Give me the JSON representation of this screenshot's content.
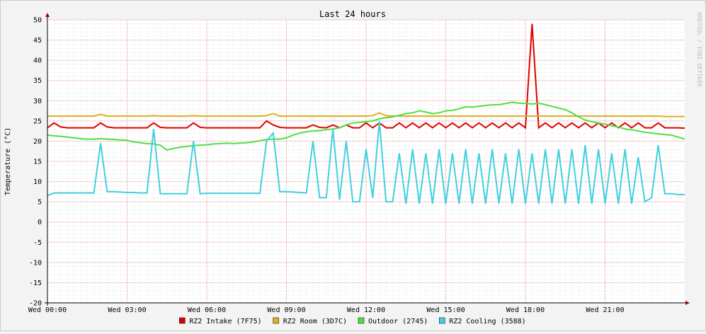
{
  "chart_data": {
    "type": "line",
    "title": "Last 24 hours",
    "y_label": "Temperature (°C)",
    "watermark": "RRDTOOL / TOBI OETIKER",
    "x": [
      0,
      0.25,
      0.5,
      0.75,
      1,
      1.25,
      1.5,
      1.75,
      2,
      2.25,
      2.5,
      2.75,
      3,
      3.25,
      3.5,
      3.75,
      4,
      4.25,
      4.5,
      4.75,
      5,
      5.25,
      5.5,
      5.75,
      6,
      6.25,
      6.5,
      6.75,
      7,
      7.25,
      7.5,
      7.75,
      8,
      8.25,
      8.5,
      8.75,
      9,
      9.25,
      9.5,
      9.75,
      10,
      10.25,
      10.5,
      10.75,
      11,
      11.25,
      11.5,
      11.75,
      12,
      12.25,
      12.5,
      12.75,
      13,
      13.25,
      13.5,
      13.75,
      14,
      14.25,
      14.5,
      14.75,
      15,
      15.25,
      15.5,
      15.75,
      16,
      16.25,
      16.5,
      16.75,
      17,
      17.25,
      17.5,
      17.75,
      18,
      18.25,
      18.5,
      18.75,
      19,
      19.25,
      19.5,
      19.75,
      20,
      20.25,
      20.5,
      20.75,
      21,
      21.25,
      21.5,
      21.75,
      22,
      22.25,
      22.5,
      22.75,
      23,
      23.25,
      23.5,
      23.75,
      24
    ],
    "xlim": [
      0,
      24
    ],
    "xticks": [
      {
        "value": 0,
        "label": "Wed 00:00"
      },
      {
        "value": 3,
        "label": "Wed 03:00"
      },
      {
        "value": 6,
        "label": "Wed 06:00"
      },
      {
        "value": 9,
        "label": "Wed 09:00"
      },
      {
        "value": 12,
        "label": "Wed 12:00"
      },
      {
        "value": 15,
        "label": "Wed 15:00"
      },
      {
        "value": 18,
        "label": "Wed 18:00"
      },
      {
        "value": 21,
        "label": "Wed 21:00"
      }
    ],
    "ylim": [
      -20,
      50
    ],
    "yticks": [
      -20,
      -15,
      -10,
      -5,
      0,
      5,
      10,
      15,
      20,
      25,
      30,
      35,
      40,
      45,
      50
    ],
    "grid": true,
    "series": [
      {
        "name": "RZ2 Intake (7F75)",
        "color": "#e00000",
        "values": [
          23.3,
          24.5,
          23.5,
          23.3,
          23.3,
          23.3,
          23.3,
          23.3,
          24.5,
          23.5,
          23.3,
          23.3,
          23.3,
          23.3,
          23.3,
          23.3,
          24.5,
          23.4,
          23.3,
          23.3,
          23.3,
          23.3,
          24.5,
          23.4,
          23.3,
          23.3,
          23.3,
          23.3,
          23.3,
          23.3,
          23.3,
          23.3,
          23.3,
          25,
          24,
          23.4,
          23.3,
          23.3,
          23.3,
          23.3,
          24,
          23.4,
          23.3,
          24,
          23.3,
          24,
          23.3,
          23.3,
          24.5,
          23.3,
          24.5,
          23.3,
          23.3,
          24.5,
          23.3,
          24.5,
          23.3,
          24.5,
          23.3,
          24.5,
          23.3,
          24.5,
          23.3,
          24.5,
          23.3,
          24.5,
          23.3,
          24.5,
          23.3,
          24.5,
          23.3,
          24.5,
          23.3,
          49,
          23.3,
          24.5,
          23.3,
          24.5,
          23.3,
          24.5,
          23.3,
          24.5,
          23.3,
          24.5,
          23.3,
          24.5,
          23.3,
          24.5,
          23.3,
          24.5,
          23.3,
          23.3,
          24.5,
          23.3,
          23.3,
          23.3,
          23.2
        ]
      },
      {
        "name": "RZ2 Room (3D7C)",
        "color": "#e0b020",
        "values": [
          26.2,
          26.2,
          26.2,
          26.2,
          26.2,
          26.2,
          26.2,
          26.2,
          26.6,
          26.2,
          26.2,
          26.2,
          26.2,
          26.2,
          26.2,
          26.2,
          26.3,
          26.2,
          26.2,
          26.2,
          26.2,
          26.2,
          26.3,
          26.2,
          26.2,
          26.2,
          26.2,
          26.2,
          26.2,
          26.2,
          26.2,
          26.2,
          26.2,
          26.3,
          26.8,
          26.2,
          26.2,
          26.2,
          26.2,
          26.2,
          26.2,
          26.2,
          26.2,
          26.2,
          26.2,
          26.2,
          26.2,
          26.2,
          26.2,
          26.3,
          27,
          26.3,
          26.2,
          26.2,
          26.2,
          26.2,
          26.2,
          26.2,
          26.2,
          26.2,
          26.2,
          26.2,
          26.2,
          26.2,
          26.2,
          26.2,
          26.2,
          26.2,
          26.2,
          26.2,
          26.2,
          26.2,
          26.2,
          26.2,
          26.2,
          26.2,
          26.2,
          26.2,
          26.2,
          26.2,
          26.2,
          26.2,
          26.2,
          26.2,
          26.2,
          26.2,
          26.2,
          26.2,
          26.2,
          26.2,
          26.2,
          26.2,
          26.2,
          26.1,
          26.1,
          26.1,
          26.1
        ]
      },
      {
        "name": "Outdoor (2745)",
        "color": "#50e040",
        "values": [
          21.5,
          21.3,
          21.2,
          21.0,
          20.8,
          20.6,
          20.5,
          20.5,
          20.6,
          20.5,
          20.4,
          20.3,
          20.2,
          19.8,
          19.6,
          19.4,
          19.3,
          19.0,
          17.8,
          18.2,
          18.5,
          18.7,
          18.9,
          19.0,
          19.1,
          19.3,
          19.4,
          19.5,
          19.4,
          19.5,
          19.6,
          19.8,
          20.1,
          20.4,
          20.5,
          20.5,
          20.8,
          21.5,
          22.0,
          22.3,
          22.5,
          22.6,
          22.8,
          23.0,
          23.3,
          24.0,
          24.5,
          24.6,
          24.8,
          25.0,
          25.5,
          25.8,
          26.0,
          26.4,
          26.8,
          27.0,
          27.5,
          27.2,
          26.8,
          27.0,
          27.5,
          27.6,
          28.0,
          28.5,
          28.4,
          28.6,
          28.8,
          29.0,
          29.0,
          29.3,
          29.6,
          29.4,
          29.3,
          29.2,
          29.4,
          29.0,
          28.6,
          28.2,
          27.8,
          27.0,
          26.0,
          25.2,
          24.8,
          24.5,
          24.2,
          23.8,
          23.5,
          23.0,
          22.8,
          22.5,
          22.2,
          22.0,
          21.8,
          21.6,
          21.5,
          21.0,
          20.5
        ]
      },
      {
        "name": "RZ2 Cooling (3588)",
        "color": "#40d0e0",
        "values": [
          6.5,
          7.2,
          7.2,
          7.2,
          7.2,
          7.2,
          7.2,
          7.2,
          19.5,
          7.5,
          7.5,
          7.4,
          7.3,
          7.3,
          7.2,
          7.2,
          23,
          7,
          7,
          7,
          7,
          7,
          20,
          7,
          7.1,
          7.1,
          7.1,
          7.1,
          7.1,
          7.1,
          7.1,
          7.1,
          7.1,
          20,
          22,
          7.5,
          7.5,
          7.4,
          7.3,
          7.2,
          20,
          6,
          6,
          23,
          5.5,
          20,
          5,
          5,
          18,
          6,
          25,
          5,
          5,
          17,
          4.5,
          18,
          4.5,
          17,
          4.5,
          18,
          4.5,
          17,
          4.5,
          18,
          4.5,
          17,
          4.5,
          18,
          4.5,
          17,
          4.5,
          18,
          4.5,
          17,
          4.5,
          18,
          4.5,
          18,
          4.5,
          18,
          4.5,
          19,
          4.5,
          18,
          4.5,
          17,
          4.5,
          18,
          4.5,
          16,
          5,
          6,
          19,
          7,
          7,
          6.8,
          6.8
        ]
      }
    ]
  }
}
